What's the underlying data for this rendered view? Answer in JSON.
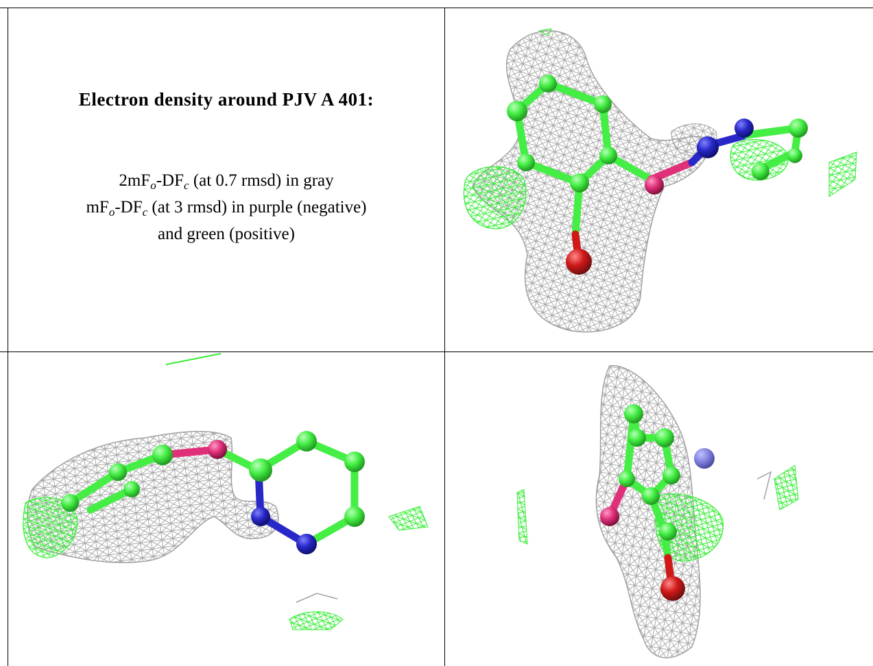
{
  "caption": {
    "title": "Electron density around PJV A 401:",
    "line1_pre": "2mF",
    "line1_sub1": "o",
    "line1_mid": "-DF",
    "line1_sub2": "c",
    "line1_post": " (at 0.7 rmsd) in gray",
    "line2_pre": "mF",
    "line2_sub1": "o",
    "line2_mid": "-DF",
    "line2_sub2": "c",
    "line2_post": " (at 3 rmsd) in purple (negative)",
    "line3": "and green (positive)"
  },
  "colors": {
    "mesh_gray": "#9a9a9a",
    "mesh_green": "#33ee33",
    "carbon": "#44ee44",
    "nitrogen": "#2828c8",
    "oxygen": "#d01818",
    "sulfur_pink": "#e0307a"
  }
}
